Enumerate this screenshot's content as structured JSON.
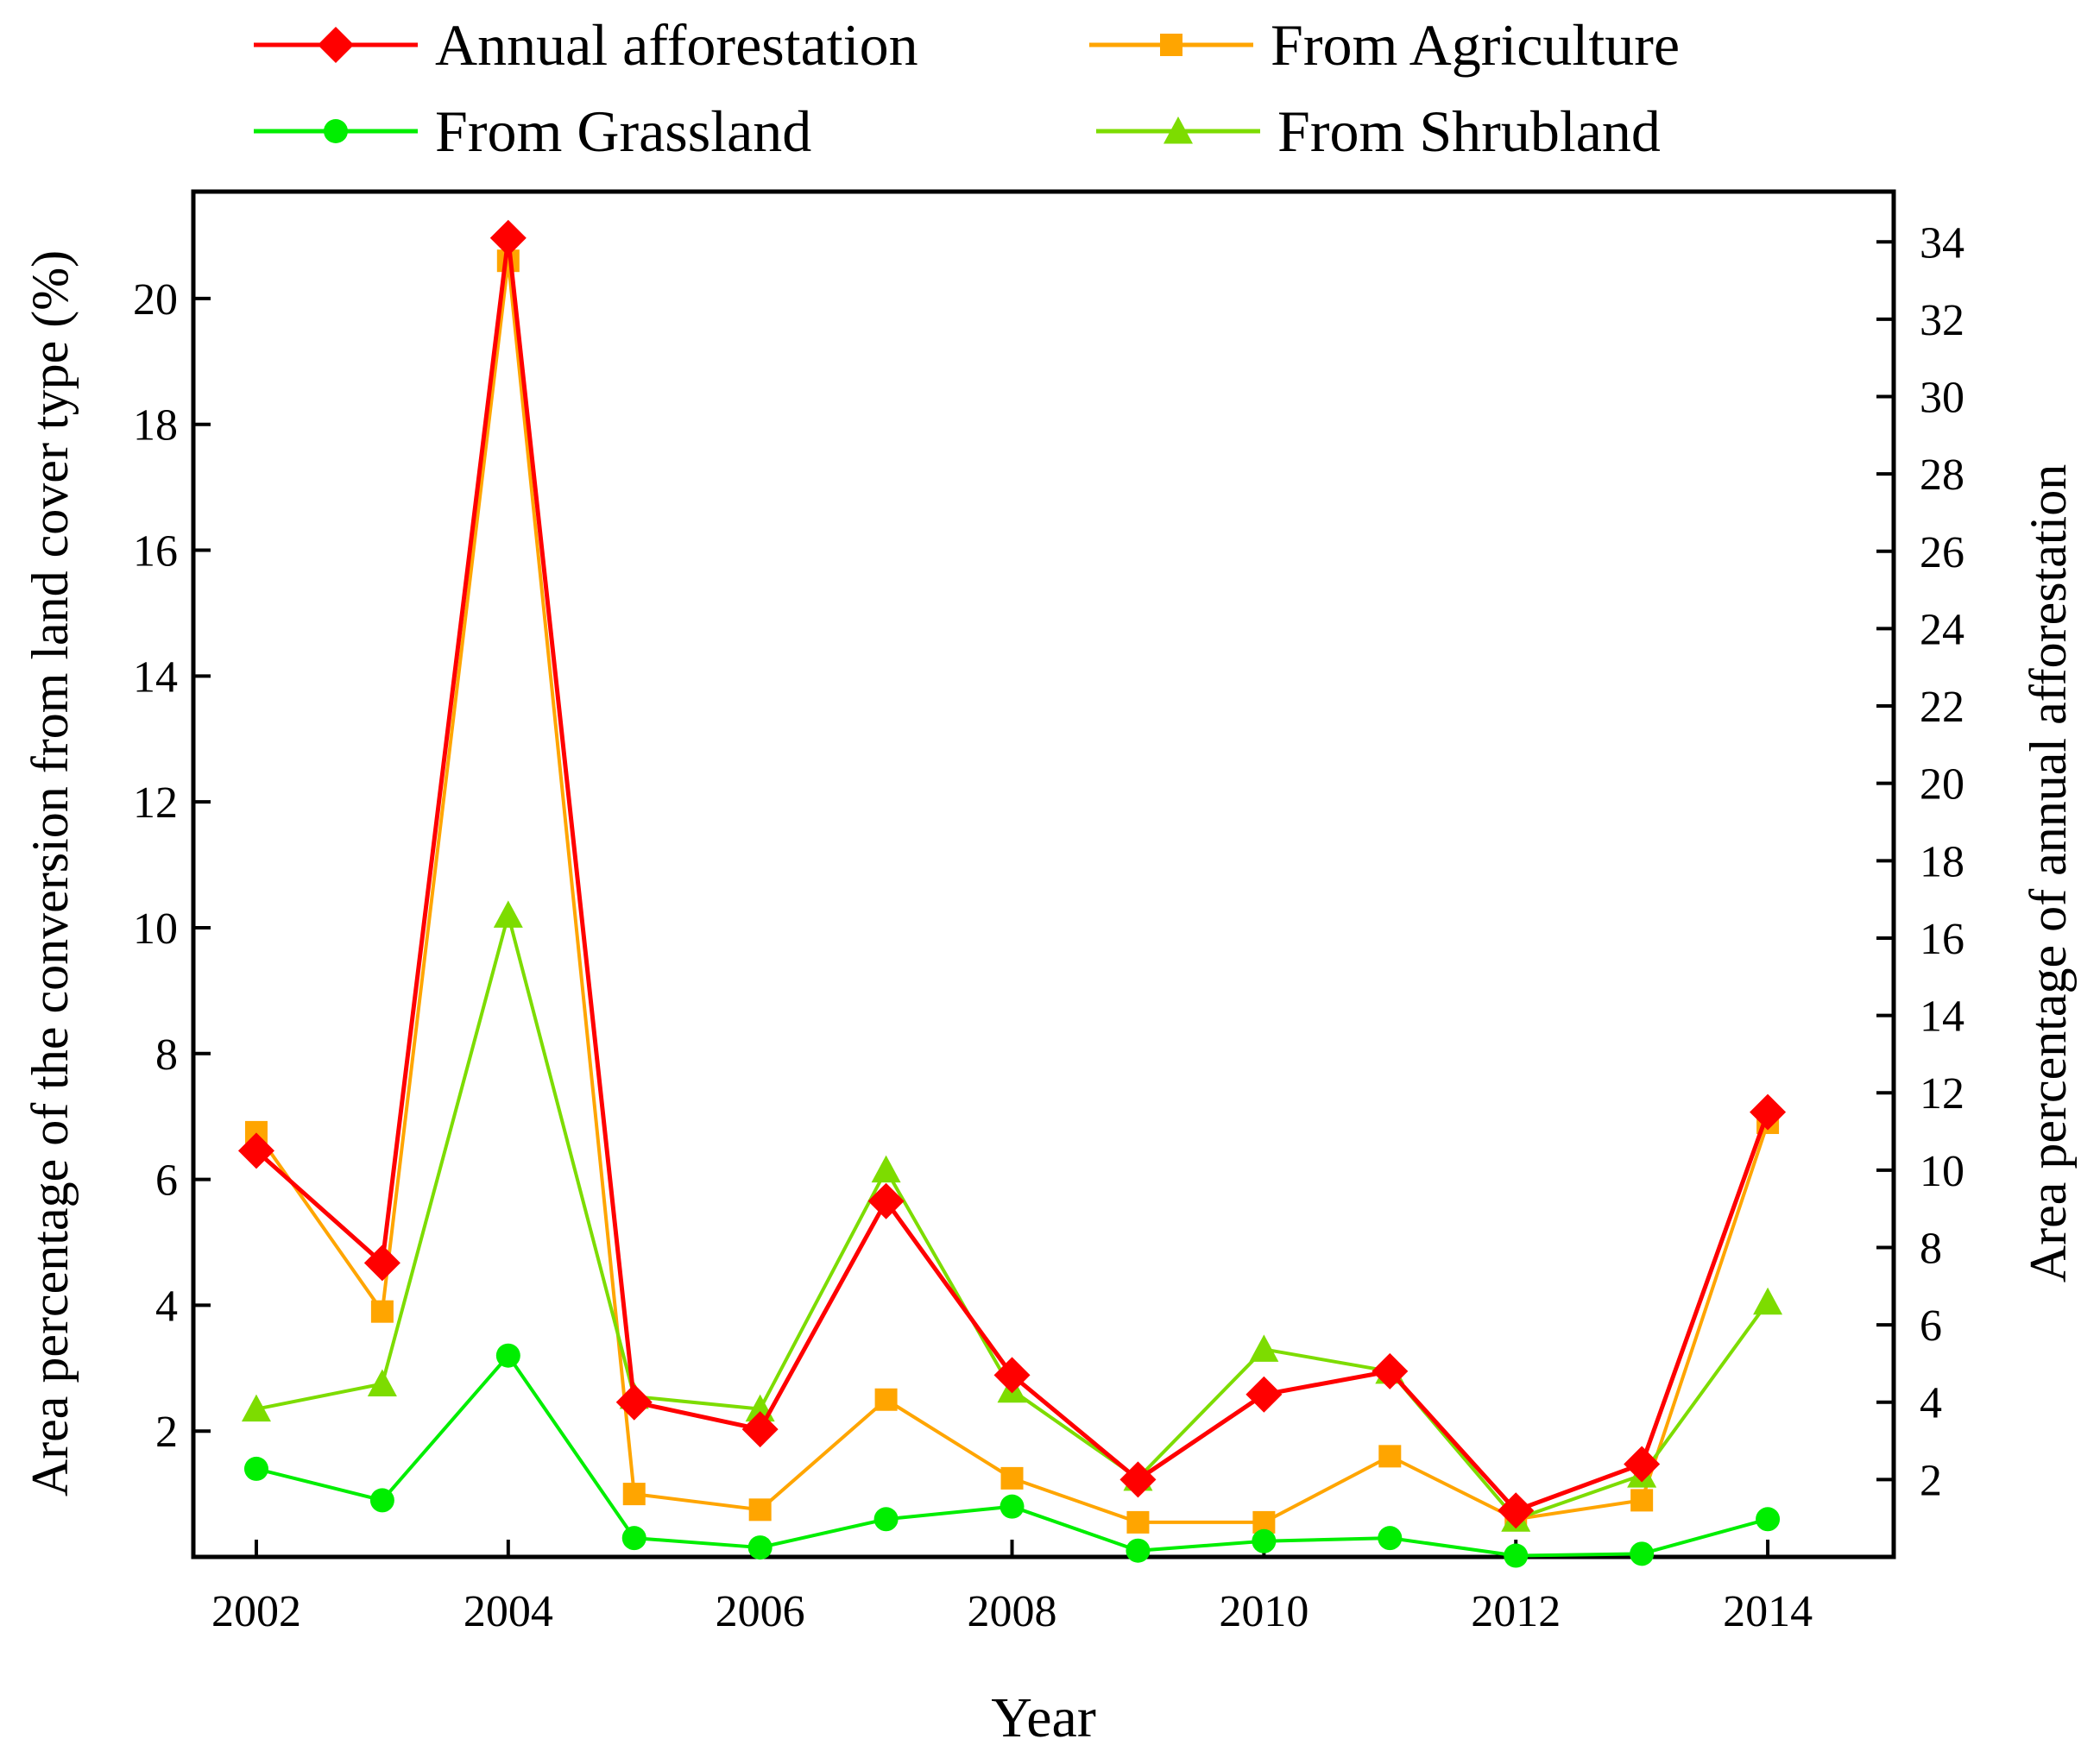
{
  "chart_data": {
    "type": "line",
    "xlabel": "Year",
    "ylabel_left": "Area percentage of the conversion from land cover type (%)",
    "ylabel_right": "Area percentage of annual afforestation",
    "x": [
      2002,
      2003,
      2004,
      2005,
      2006,
      2007,
      2008,
      2009,
      2010,
      2011,
      2012,
      2013,
      2014
    ],
    "x_ticks": [
      2002,
      2004,
      2006,
      2008,
      2010,
      2012,
      2014
    ],
    "x_tick_labels": [
      "2002",
      "2004",
      "2006",
      "2008",
      "2010",
      "2012",
      "2014"
    ],
    "xlim": [
      2001.5,
      2015
    ],
    "ylim_left": [
      0,
      21.7
    ],
    "ylim_right": [
      0,
      35.3
    ],
    "yticks_left": [
      2,
      4,
      6,
      8,
      10,
      12,
      14,
      16,
      18,
      20
    ],
    "yticks_left_labels": [
      "2",
      "4",
      "6",
      "8",
      "10",
      "12",
      "14",
      "16",
      "18",
      "20"
    ],
    "yticks_right": [
      2,
      4,
      6,
      8,
      10,
      12,
      14,
      16,
      18,
      20,
      22,
      24,
      26,
      28,
      30,
      32,
      34
    ],
    "yticks_right_labels": [
      "2",
      "4",
      "6",
      "8",
      "10",
      "12",
      "14",
      "16",
      "18",
      "20",
      "22",
      "24",
      "26",
      "28",
      "30",
      "32",
      "34"
    ],
    "legend_position": "top",
    "series": [
      {
        "name": "Annual afforestation",
        "axis": "right",
        "color": "#ff0000",
        "marker": "diamond",
        "values": [
          10.5,
          7.6,
          34.1,
          4.0,
          3.3,
          9.2,
          4.7,
          2.0,
          4.2,
          4.8,
          1.2,
          2.4,
          11.5
        ]
      },
      {
        "name": "From Agriculture",
        "axis": "left",
        "color": "#ffa500",
        "marker": "square",
        "values": [
          6.75,
          3.9,
          20.6,
          1.0,
          0.75,
          2.5,
          1.25,
          0.55,
          0.55,
          1.6,
          0.6,
          0.9,
          6.9
        ]
      },
      {
        "name": "From Grassland",
        "axis": "left",
        "color": "#00ee00",
        "marker": "circle",
        "values": [
          1.4,
          0.9,
          3.2,
          0.3,
          0.15,
          0.6,
          0.8,
          0.1,
          0.25,
          0.3,
          0.02,
          0.05,
          0.6
        ]
      },
      {
        "name": "From Shrubland",
        "axis": "left",
        "color": "#7ddc00",
        "marker": "triangle",
        "values": [
          2.35,
          2.75,
          10.2,
          2.55,
          2.35,
          6.15,
          2.65,
          1.25,
          3.3,
          2.95,
          0.6,
          1.3,
          4.05
        ]
      }
    ]
  }
}
